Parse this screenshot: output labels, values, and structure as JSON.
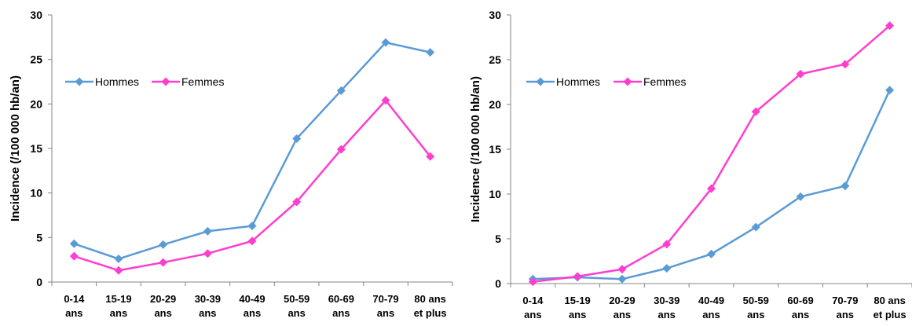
{
  "chart_data": [
    {
      "type": "line",
      "ylabel": "Incidence (/100 000 hb/an)",
      "ylim": [
        0,
        30
      ],
      "yticks": [
        0,
        5,
        10,
        15,
        20,
        25,
        30
      ],
      "categories": [
        [
          "0-14",
          "ans"
        ],
        [
          "15-19",
          "ans"
        ],
        [
          "20-29",
          "ans"
        ],
        [
          "30-39",
          "ans"
        ],
        [
          "40-49",
          "ans"
        ],
        [
          "50-59",
          "ans"
        ],
        [
          "60-69",
          "ans"
        ],
        [
          "70-79",
          "ans"
        ],
        [
          "80 ans",
          "et plus"
        ]
      ],
      "legend_position": "top-left",
      "grid": false,
      "series": [
        {
          "name": "Hommes",
          "color": "#5b9bd5",
          "values": [
            4.3,
            2.6,
            4.2,
            5.7,
            6.3,
            16.1,
            21.5,
            26.9,
            25.8
          ]
        },
        {
          "name": "Femmes",
          "color": "#ff3ecf",
          "values": [
            2.9,
            1.3,
            2.2,
            3.2,
            4.6,
            9.0,
            14.9,
            20.4,
            14.1
          ]
        }
      ]
    },
    {
      "type": "line",
      "ylabel": "Incidence (/100 000 hb/an)",
      "ylim": [
        0,
        30
      ],
      "yticks": [
        0,
        5,
        10,
        15,
        20,
        25,
        30
      ],
      "categories": [
        [
          "0-14",
          "ans"
        ],
        [
          "15-19",
          "ans"
        ],
        [
          "20-29",
          "ans"
        ],
        [
          "30-39",
          "ans"
        ],
        [
          "40-49",
          "ans"
        ],
        [
          "50-59",
          "ans"
        ],
        [
          "60-69",
          "ans"
        ],
        [
          "70-79",
          "ans"
        ],
        [
          "80 ans",
          "et plus"
        ]
      ],
      "legend_position": "top-left",
      "grid": false,
      "series": [
        {
          "name": "Hommes",
          "color": "#5b9bd5",
          "values": [
            0.5,
            0.7,
            0.5,
            1.7,
            3.3,
            6.3,
            9.7,
            10.9,
            21.6
          ]
        },
        {
          "name": "Femmes",
          "color": "#ff3ecf",
          "values": [
            0.2,
            0.8,
            1.6,
            4.4,
            10.6,
            19.2,
            23.4,
            24.5,
            28.8
          ]
        }
      ]
    }
  ]
}
